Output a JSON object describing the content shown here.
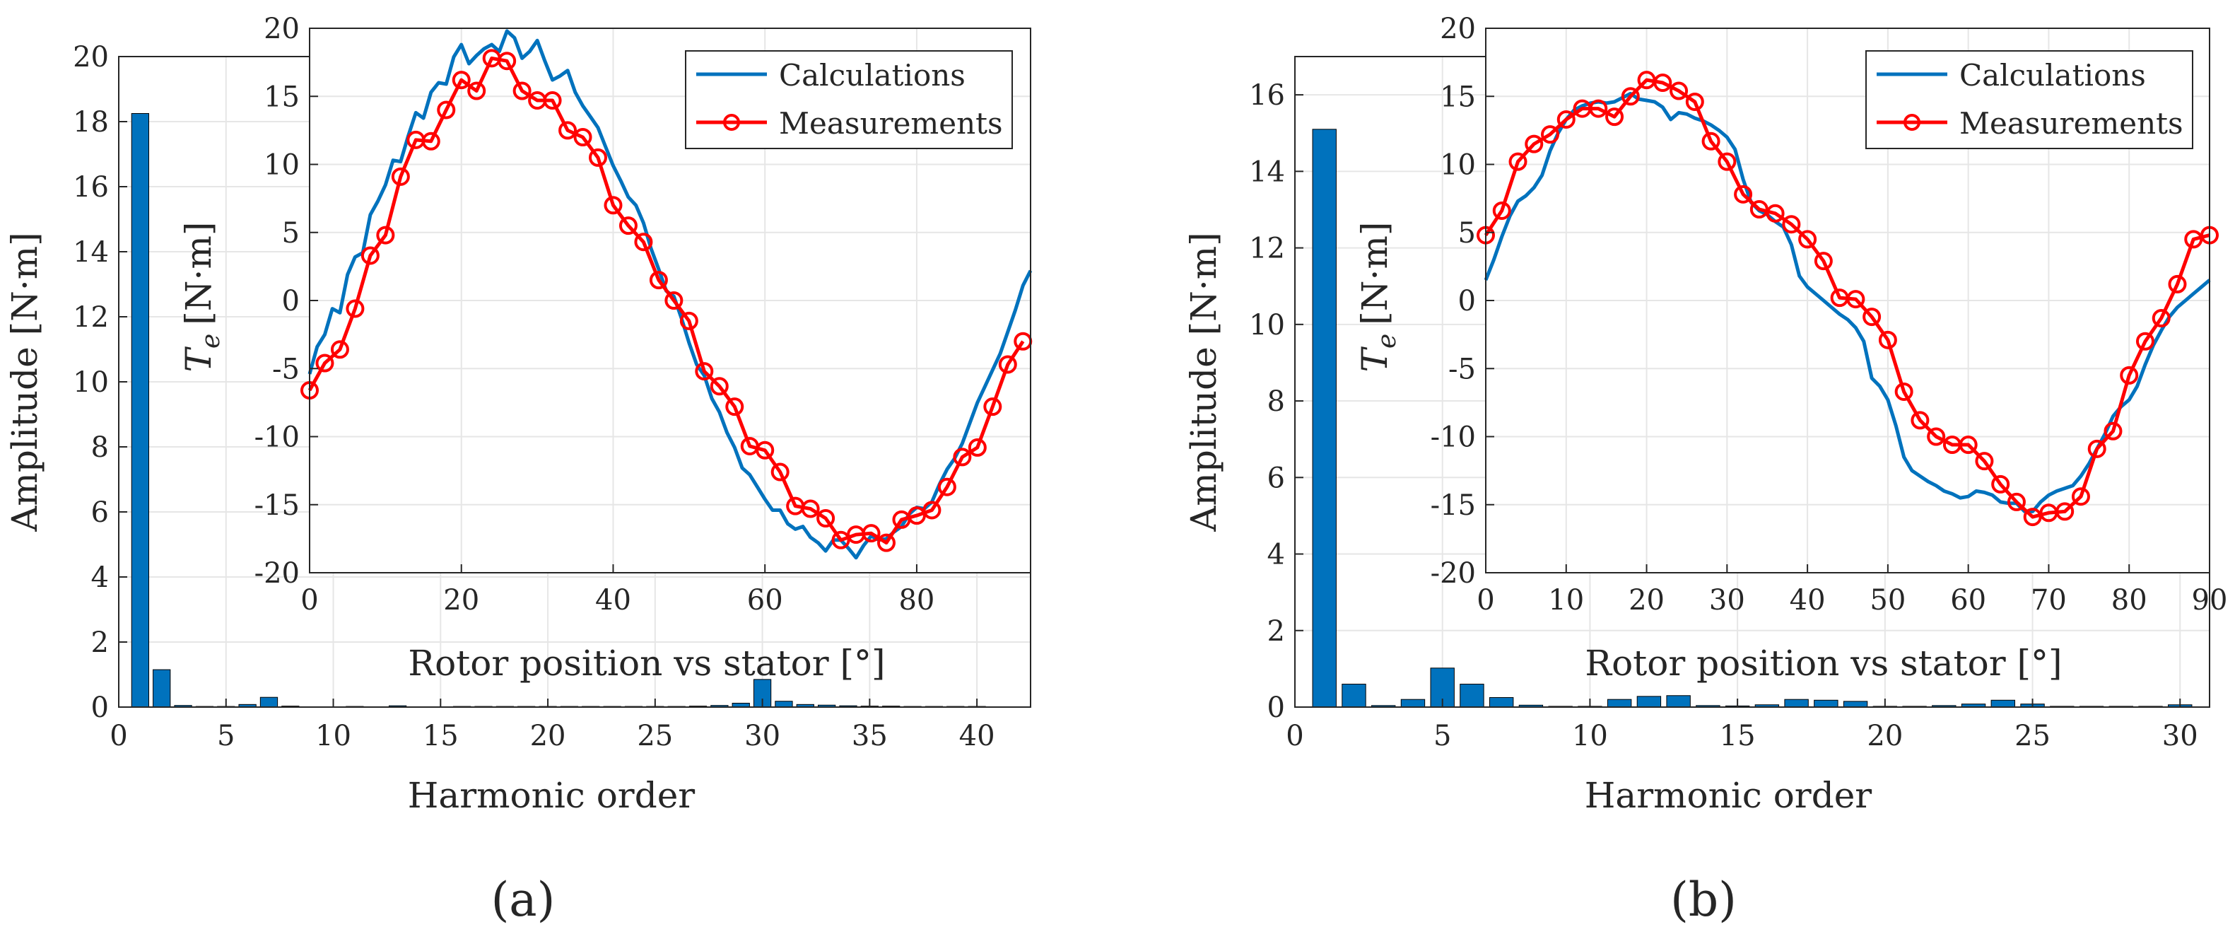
{
  "chart_data": [
    {
      "panel_label": "(a)",
      "main": {
        "type": "bar",
        "xlabel": "Harmonic order",
        "ylabel": "Amplitude [N·m]",
        "xlim": [
          0,
          42.5
        ],
        "ylim": [
          0,
          20
        ],
        "xticks": [
          0,
          5,
          10,
          15,
          20,
          25,
          30,
          35,
          40
        ],
        "yticks": [
          0,
          2,
          4,
          6,
          8,
          10,
          12,
          14,
          16,
          18,
          20
        ],
        "grid": true,
        "bar_color": "#0072BD",
        "categories": [
          1,
          2,
          3,
          4,
          5,
          6,
          7,
          8,
          9,
          10,
          11,
          12,
          13,
          14,
          15,
          16,
          17,
          18,
          19,
          20,
          21,
          22,
          23,
          24,
          25,
          26,
          27,
          28,
          29,
          30,
          31,
          32,
          33,
          34,
          35,
          36,
          37,
          38,
          39,
          40
        ],
        "values": [
          18.25,
          1.15,
          0.05,
          0.02,
          0.02,
          0.08,
          0.3,
          0.03,
          0.0,
          0.0,
          0.02,
          0.0,
          0.04,
          0.0,
          0.0,
          0.02,
          0.02,
          0.02,
          0.02,
          0.02,
          0.02,
          0.02,
          0.02,
          0.02,
          0.02,
          0.02,
          0.03,
          0.05,
          0.12,
          0.85,
          0.18,
          0.08,
          0.06,
          0.04,
          0.03,
          0.03,
          0.02,
          0.02,
          0.02,
          0.02
        ]
      },
      "inset": {
        "type": "line",
        "xlabel": "Rotor position vs stator [°]",
        "ylabel_main": "T",
        "ylabel_sub": "e",
        "ylabel_unit": "[N·m]",
        "xlim": [
          0,
          95
        ],
        "ylim": [
          -20,
          20
        ],
        "xticks": [
          0,
          20,
          40,
          60,
          80
        ],
        "yticks": [
          -20,
          -15,
          -10,
          -5,
          0,
          5,
          10,
          15,
          20
        ],
        "grid": true,
        "legend_position": "top-right",
        "series": [
          {
            "name": "Calculations",
            "color": "#0072BD",
            "x": [
              0,
              1,
              2,
              3,
              4,
              5,
              6,
              7,
              8,
              9,
              10,
              11,
              12,
              13,
              14,
              15,
              16,
              17,
              18,
              19,
              20,
              21,
              22,
              23,
              24,
              25,
              26,
              27,
              28,
              29,
              30,
              31,
              32,
              33,
              34,
              35,
              36,
              37,
              38,
              39,
              40,
              41,
              42,
              43,
              44,
              45,
              46,
              47,
              48,
              49,
              50,
              51,
              52,
              53,
              54,
              55,
              56,
              57,
              58,
              59,
              60,
              61,
              62,
              63,
              64,
              65,
              66,
              67,
              68,
              69,
              70,
              71,
              72,
              73,
              74,
              75,
              76,
              77,
              78,
              79,
              80,
              81,
              82,
              83,
              84,
              85,
              86,
              87,
              88,
              89,
              90,
              91,
              92,
              93,
              94,
              95
            ],
            "y": [
              -5.4,
              -3.4,
              -2.5,
              -0.6,
              -0.9,
              1.9,
              3.2,
              3.5,
              6.3,
              7.3,
              8.5,
              10.3,
              10.2,
              12.1,
              13.8,
              13.4,
              15.3,
              16.0,
              15.9,
              17.9,
              18.8,
              17.4,
              18.0,
              18.5,
              18.8,
              18.3,
              19.8,
              19.3,
              17.8,
              18.3,
              19.1,
              17.6,
              16.2,
              16.5,
              16.9,
              15.3,
              14.3,
              13.5,
              12.7,
              11.3,
              9.9,
              8.8,
              7.6,
              7.0,
              5.7,
              3.8,
              2.3,
              0.7,
              0.3,
              -1.3,
              -3.1,
              -4.7,
              -5.5,
              -7.2,
              -8.2,
              -9.7,
              -10.8,
              -12.3,
              -12.8,
              -13.7,
              -14.6,
              -15.4,
              -15.4,
              -16.4,
              -16.8,
              -16.6,
              -17.4,
              -17.8,
              -18.4,
              -17.6,
              -17.6,
              -18.2,
              -18.9,
              -18.0,
              -17.3,
              -17.6,
              -17.5,
              -17.0,
              -16.6,
              -15.7,
              -15.2,
              -15.3,
              -14.8,
              -13.5,
              -12.4,
              -11.6,
              -10.5,
              -9.0,
              -7.5,
              -6.3,
              -5.1,
              -3.9,
              -2.3,
              -0.7,
              1.1,
              2.2
            ]
          },
          {
            "name": "Measurements",
            "color": "#FF0000",
            "x": [
              0,
              2,
              4,
              6,
              8,
              10,
              12,
              14,
              16,
              18,
              20,
              22,
              24,
              26,
              28,
              30,
              32,
              34,
              36,
              38,
              40,
              42,
              44,
              46,
              48,
              50,
              52,
              54,
              56,
              58,
              60,
              62,
              64,
              66,
              68,
              70,
              72,
              74,
              76,
              78,
              80,
              82,
              84,
              86,
              88,
              90,
              92,
              94
            ],
            "y": [
              -6.6,
              -4.6,
              -3.6,
              -0.6,
              3.3,
              4.8,
              9.1,
              11.8,
              11.7,
              14.0,
              16.2,
              15.4,
              17.8,
              17.6,
              15.4,
              14.7,
              14.7,
              12.5,
              12.0,
              10.5,
              7.0,
              5.5,
              4.3,
              1.5,
              0.0,
              -1.5,
              -5.2,
              -6.3,
              -7.8,
              -10.7,
              -11.0,
              -12.6,
              -15.1,
              -15.3,
              -16.0,
              -17.6,
              -17.2,
              -17.1,
              -17.8,
              -16.1,
              -15.8,
              -15.4,
              -13.7,
              -11.5,
              -10.8,
              -7.8,
              -4.7,
              -3.0
            ]
          }
        ]
      }
    },
    {
      "panel_label": "(b)",
      "main": {
        "type": "bar",
        "xlabel": "Harmonic order",
        "ylabel": "Amplitude [N·m]",
        "xlim": [
          0,
          31
        ],
        "ylim": [
          0,
          17
        ],
        "xticks": [
          0,
          5,
          10,
          15,
          20,
          25,
          30
        ],
        "yticks": [
          0,
          2,
          4,
          6,
          8,
          10,
          12,
          14,
          16
        ],
        "grid": true,
        "bar_color": "#0072BD",
        "categories": [
          1,
          2,
          3,
          4,
          5,
          6,
          7,
          8,
          9,
          10,
          11,
          12,
          13,
          14,
          15,
          16,
          17,
          18,
          19,
          20,
          21,
          22,
          23,
          24,
          25,
          26,
          27,
          28,
          29,
          30
        ],
        "values": [
          15.1,
          0.6,
          0.04,
          0.2,
          1.02,
          0.6,
          0.25,
          0.05,
          0.02,
          0.02,
          0.2,
          0.28,
          0.3,
          0.04,
          0.03,
          0.06,
          0.2,
          0.18,
          0.15,
          0.02,
          0.02,
          0.04,
          0.08,
          0.18,
          0.08,
          0.02,
          0.02,
          0.02,
          0.02,
          0.06
        ]
      },
      "inset": {
        "type": "line",
        "xlabel": "Rotor position vs stator [°]",
        "ylabel_main": "T",
        "ylabel_sub": "e",
        "ylabel_unit": "[N·m]",
        "xlim": [
          0,
          90
        ],
        "ylim": [
          -20,
          20
        ],
        "xticks": [
          0,
          10,
          20,
          30,
          40,
          50,
          60,
          70,
          80,
          90
        ],
        "yticks": [
          -20,
          -15,
          -10,
          -5,
          0,
          5,
          10,
          15,
          20
        ],
        "grid": true,
        "legend_position": "top-right",
        "series": [
          {
            "name": "Calculations",
            "color": "#0072BD",
            "x": [
              0,
              1,
              2,
              3,
              4,
              5,
              6,
              7,
              8,
              9,
              10,
              11,
              12,
              13,
              14,
              15,
              16,
              17,
              18,
              19,
              20,
              21,
              22,
              23,
              24,
              25,
              26,
              27,
              28,
              29,
              30,
              31,
              32,
              33,
              34,
              35,
              36,
              37,
              38,
              39,
              40,
              41,
              42,
              43,
              44,
              45,
              46,
              47,
              48,
              49,
              50,
              51,
              52,
              53,
              54,
              55,
              56,
              57,
              58,
              59,
              60,
              61,
              62,
              63,
              64,
              65,
              66,
              67,
              68,
              69,
              70,
              71,
              72,
              73,
              74,
              75,
              76,
              77,
              78,
              79,
              80,
              81,
              82,
              83,
              84,
              85,
              86,
              87,
              88,
              89,
              90
            ],
            "y": [
              1.5,
              3.0,
              4.7,
              6.2,
              7.3,
              7.7,
              8.3,
              9.2,
              11.0,
              12.3,
              13.3,
              14.0,
              14.3,
              14.5,
              14.6,
              14.5,
              14.6,
              14.9,
              15.2,
              14.8,
              14.7,
              14.6,
              14.2,
              13.3,
              13.8,
              13.7,
              13.4,
              13.2,
              12.9,
              12.5,
              12.0,
              11.1,
              8.9,
              7.2,
              6.6,
              6.3,
              5.8,
              5.4,
              4.1,
              1.8,
              1.0,
              0.5,
              0.0,
              -0.5,
              -1.0,
              -1.4,
              -2.0,
              -3.0,
              -5.7,
              -6.3,
              -7.3,
              -9.2,
              -11.5,
              -12.5,
              -12.9,
              -13.3,
              -13.6,
              -14.0,
              -14.2,
              -14.5,
              -14.4,
              -14.0,
              -14.1,
              -14.3,
              -14.8,
              -14.9,
              -14.9,
              -15.5,
              -15.5,
              -14.8,
              -14.3,
              -14.0,
              -13.8,
              -13.6,
              -12.9,
              -12.0,
              -10.9,
              -9.8,
              -8.5,
              -7.8,
              -7.3,
              -6.3,
              -4.7,
              -3.3,
              -2.2,
              -1.2,
              -0.5,
              0.0,
              0.5,
              1.0,
              1.5
            ]
          },
          {
            "name": "Measurements",
            "color": "#FF0000",
            "x": [
              0,
              2,
              4,
              6,
              8,
              10,
              12,
              14,
              16,
              18,
              20,
              22,
              24,
              26,
              28,
              30,
              32,
              34,
              36,
              38,
              40,
              42,
              44,
              46,
              48,
              50,
              52,
              54,
              56,
              58,
              60,
              62,
              64,
              66,
              68,
              70,
              72,
              74,
              76,
              78,
              80,
              82,
              84,
              86,
              88,
              90
            ],
            "y": [
              4.8,
              6.6,
              10.2,
              11.5,
              12.2,
              13.3,
              14.1,
              14.1,
              13.5,
              15.0,
              16.2,
              16.0,
              15.4,
              14.6,
              11.7,
              10.2,
              7.8,
              6.7,
              6.4,
              5.6,
              4.5,
              2.9,
              0.2,
              0.1,
              -1.2,
              -2.9,
              -6.7,
              -8.8,
              -10.0,
              -10.6,
              -10.6,
              -11.8,
              -13.5,
              -14.8,
              -15.9,
              -15.6,
              -15.5,
              -14.4,
              -10.9,
              -9.6,
              -5.5,
              -3.0,
              -1.3,
              1.2,
              4.5,
              4.8
            ]
          }
        ]
      }
    }
  ]
}
